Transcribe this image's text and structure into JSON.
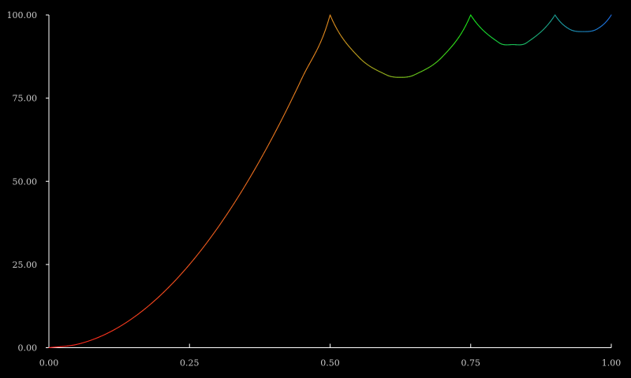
{
  "chart_data": {
    "type": "line",
    "title": "",
    "xlabel": "",
    "ylabel": "",
    "xlim": [
      0,
      1
    ],
    "ylim": [
      0,
      100
    ],
    "x_ticks": [
      "0.00",
      "0.25",
      "0.50",
      "0.75",
      "1.00"
    ],
    "y_ticks": [
      "0.00",
      "25.00",
      "50.00",
      "75.00",
      "100.00"
    ],
    "grid": false,
    "legend": "none",
    "background": "#000000",
    "axis_color": "#ffffff",
    "tick_label_color": "#c8c8c8",
    "series": [
      {
        "x": [
          0,
          0.05,
          0.1,
          0.15,
          0.2,
          0.25,
          0.3,
          0.35,
          0.4,
          0.45,
          0.5,
          0.55,
          0.6,
          0.625,
          0.65,
          0.7,
          0.75,
          0.8,
          0.825,
          0.85,
          0.9,
          0.925,
          0.95,
          0.975,
          1.0
        ],
        "y": [
          0,
          1,
          4,
          9,
          16,
          25,
          36,
          49,
          64,
          81,
          100,
          87.5,
          82.0,
          81.25,
          82.0,
          87.5,
          100,
          91.7,
          91.1,
          91.7,
          100,
          95.8,
          95.0,
          95.8,
          100
        ]
      }
    ],
    "color_stops": [
      {
        "x": 0.0,
        "color": "#ff1e1e"
      },
      {
        "x": 0.5,
        "color": "#e08a1e"
      },
      {
        "x": 0.75,
        "color": "#19e619"
      },
      {
        "x": 1.0,
        "color": "#1e6ee6"
      }
    ]
  }
}
